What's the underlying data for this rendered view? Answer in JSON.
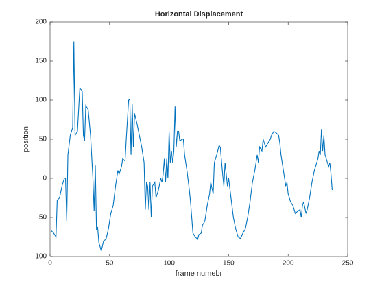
{
  "chart_data": {
    "type": "line",
    "title": "Horizontal Displacement",
    "xlabel": "frame numebr",
    "ylabel": "position",
    "x": [
      1,
      3,
      5,
      6,
      8,
      10,
      12,
      13,
      14,
      15,
      17,
      19,
      20,
      21,
      23,
      25,
      27,
      28,
      29,
      30,
      32,
      34,
      36,
      37,
      38,
      39,
      40,
      41,
      43,
      45,
      47,
      49,
      51,
      53,
      55,
      57,
      58,
      60,
      61,
      63,
      64,
      66,
      67,
      68,
      69,
      70,
      71,
      73,
      75,
      77,
      79,
      80,
      81,
      82,
      83,
      84,
      85,
      86,
      88,
      89,
      91,
      93,
      94,
      95,
      96,
      97,
      98,
      99,
      100,
      101,
      102,
      103,
      104,
      105,
      106,
      107,
      108,
      109,
      111,
      112,
      113,
      115,
      117,
      118,
      120,
      122,
      124,
      125,
      127,
      128,
      130,
      132,
      134,
      135,
      137,
      138,
      140,
      142,
      143,
      145,
      146,
      147,
      149,
      150,
      152,
      154,
      156,
      158,
      160,
      162,
      164,
      166,
      168,
      170,
      172,
      174,
      175,
      176,
      178,
      179,
      181,
      183,
      185,
      186,
      188,
      190,
      192,
      193,
      194,
      196,
      198,
      199,
      200,
      202,
      204,
      206,
      208,
      210,
      211,
      212,
      213,
      215,
      216,
      218,
      220,
      222,
      224,
      225,
      226,
      227,
      228,
      229,
      230,
      231,
      232,
      234,
      235,
      236,
      237
    ],
    "series": [
      {
        "name": "position",
        "color": "#0072bd",
        "values": [
          -67,
          -70,
          -75,
          -28,
          -25,
          -10,
          0,
          0,
          -55,
          30,
          55,
          65,
          175,
          55,
          60,
          115,
          112,
          55,
          48,
          93,
          88,
          55,
          0,
          -42,
          17,
          -65,
          -63,
          -82,
          -93,
          -80,
          -78,
          -65,
          -45,
          -35,
          -10,
          10,
          5,
          15,
          25,
          22,
          50,
          100,
          101,
          30,
          95,
          40,
          83,
          70,
          55,
          40,
          20,
          -40,
          -5,
          -10,
          -40,
          -5,
          -50,
          -10,
          -5,
          -25,
          -15,
          0,
          -5,
          5,
          25,
          -5,
          25,
          0,
          60,
          20,
          35,
          20,
          35,
          92,
          40,
          60,
          60,
          48,
          50,
          50,
          30,
          10,
          -15,
          -30,
          -70,
          -75,
          -78,
          -72,
          -70,
          -60,
          -55,
          -35,
          -20,
          -5,
          -20,
          20,
          30,
          42,
          40,
          5,
          -10,
          20,
          -10,
          0,
          -25,
          -50,
          -65,
          -75,
          -77,
          -70,
          -65,
          -50,
          -30,
          -5,
          10,
          30,
          20,
          40,
          35,
          50,
          40,
          45,
          50,
          55,
          60,
          58,
          55,
          45,
          30,
          10,
          -10,
          -5,
          -20,
          -30,
          -35,
          -45,
          -42,
          -40,
          -50,
          -35,
          -30,
          -45,
          -40,
          -25,
          -5,
          10,
          20,
          25,
          35,
          30,
          63,
          35,
          55,
          30,
          25,
          15,
          20,
          5,
          -15
        ]
      }
    ],
    "xlim": [
      0,
      250
    ],
    "xticks": [
      0,
      50,
      100,
      150,
      200,
      250
    ],
    "ylim": [
      -100,
      200
    ],
    "yticks": [
      -100,
      -50,
      0,
      50,
      100,
      150,
      200
    ]
  }
}
